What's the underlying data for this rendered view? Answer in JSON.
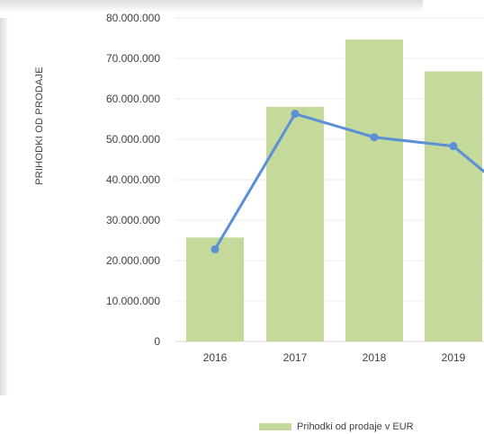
{
  "chart_data": {
    "type": "bar",
    "title": "",
    "xlabel": "",
    "ylabel": "PRIHODKI OD PRODAJE",
    "categories": [
      "2016",
      "2017",
      "2018",
      "2019"
    ],
    "y_ticks": [
      "0",
      "10.000.000",
      "20.000.000",
      "30.000.000",
      "40.000.000",
      "50.000.000",
      "60.000.000",
      "70.000.000",
      "80.000.000"
    ],
    "ylim": [
      0,
      80000000
    ],
    "grid": true,
    "legend_placement": "bottom",
    "series": [
      {
        "name": "Prihodki od prodaje v EUR",
        "type": "bar",
        "color": "#c5d99b",
        "values": [
          25700000,
          58000000,
          74700000,
          66800000
        ]
      },
      {
        "name": "",
        "type": "line",
        "color": "#5b8fd6",
        "values": [
          22800000,
          56300000,
          50500000,
          48300000
        ],
        "trail_value": 42000000
      }
    ]
  },
  "legend": {
    "label": "Prihodki od prodaje v EUR"
  }
}
